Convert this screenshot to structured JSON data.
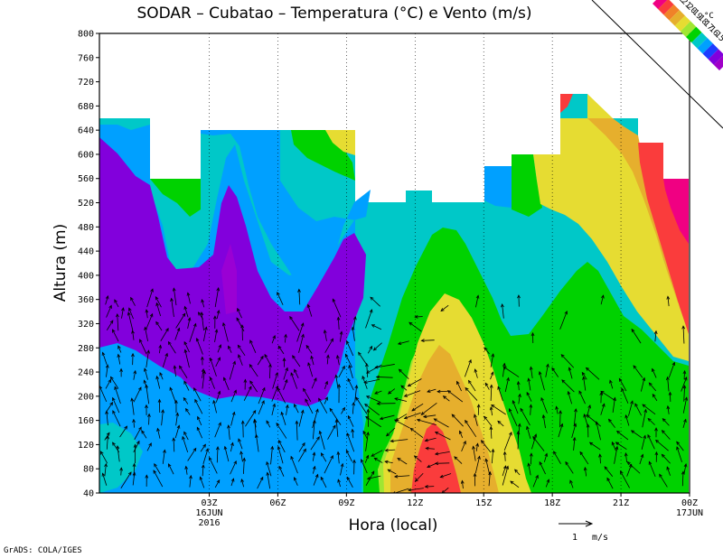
{
  "chart_data": {
    "type": "heatmap",
    "title": "SODAR – Cubatao – Temperatura (°C) e Vento (m/s)",
    "ylabel": "Altura (m)",
    "xlabel": "Hora (local)",
    "ylim": [
      40,
      800
    ],
    "xlim_hours": [
      -1.8,
      24
    ],
    "y_ticks": [
      40,
      80,
      120,
      160,
      200,
      240,
      280,
      320,
      360,
      400,
      440,
      480,
      520,
      560,
      600,
      640,
      680,
      720,
      760,
      800
    ],
    "x_ticks": [
      {
        "hour": 3,
        "label": "03Z",
        "date": "16JUN",
        "year": "2016"
      },
      {
        "hour": 6,
        "label": "06Z"
      },
      {
        "hour": 9,
        "label": "09Z"
      },
      {
        "hour": 12,
        "label": "12Z"
      },
      {
        "hour": 15,
        "label": "15Z"
      },
      {
        "hour": 18,
        "label": "18Z"
      },
      {
        "hour": 21,
        "label": "21Z"
      },
      {
        "hour": 24,
        "label": "00Z",
        "date": "17JUN"
      }
    ],
    "colorbar": {
      "unit": "°C",
      "levels": [
        15,
        16,
        17,
        18,
        19,
        20,
        21,
        22
      ],
      "colors": [
        "#a000c8",
        "#8200dc",
        "#1e3cff",
        "#00a0ff",
        "#00c8c8",
        "#00d200",
        "#a0e632",
        "#e6dc32",
        "#e6af2d",
        "#f08228",
        "#fa3c3c",
        "#f00082"
      ]
    },
    "wind_reference": {
      "label": "1",
      "unit": "m/s"
    },
    "grid": "dotted"
  },
  "footer": {
    "credit": "GrADS: COLA/IGES"
  }
}
